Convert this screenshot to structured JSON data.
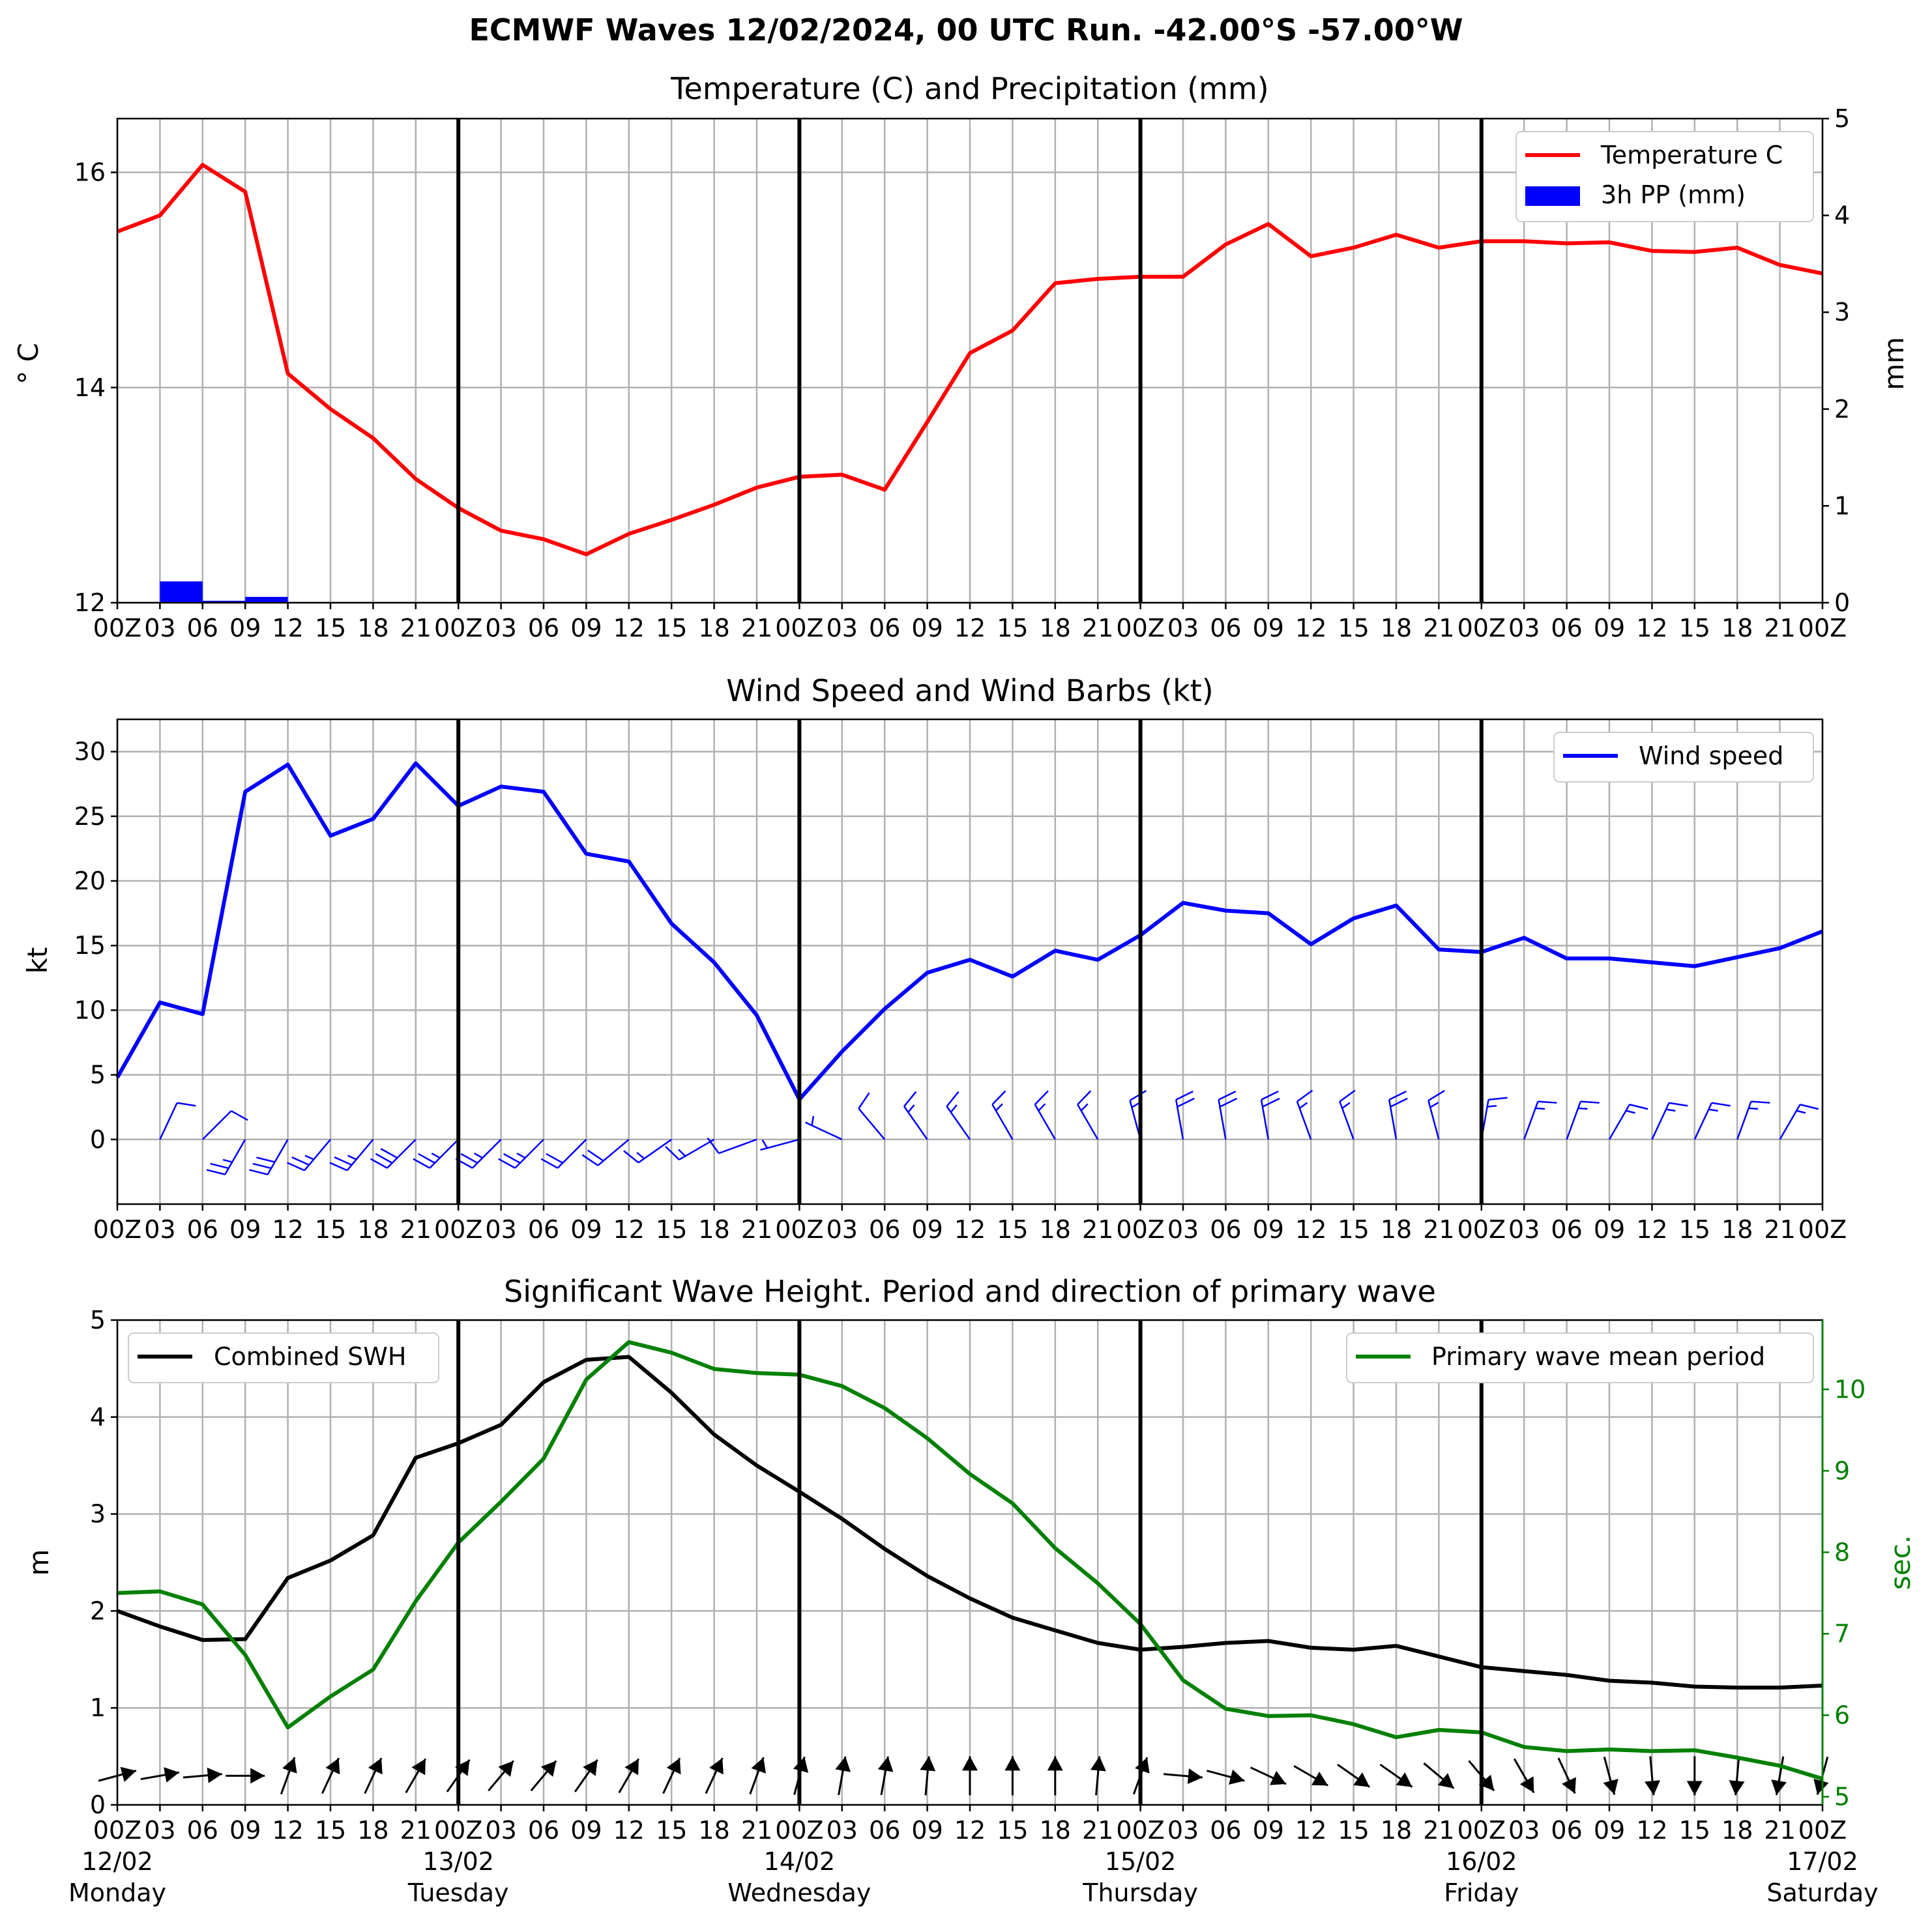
{
  "suptitle": "ECMWF Waves 12/02/2024, 00 UTC Run. -42.00°S -57.00°W",
  "colors": {
    "temperature": "#ff0000",
    "precip": "#0000ff",
    "wind": "#0000ff",
    "swh": "#000000",
    "period": "#008000",
    "grid": "#b0b0b0"
  },
  "hour_ticks": [
    "00Z",
    "03",
    "06",
    "09",
    "12",
    "15",
    "18",
    "21"
  ],
  "end_tick": "00Z",
  "bottom_day_ticks": [
    "00Z",
    "03",
    "06",
    "09",
    "12",
    "15",
    "18",
    "21"
  ],
  "day_dates": [
    "12/02",
    "13/02",
    "14/02",
    "15/02",
    "16/02",
    "17/02"
  ],
  "day_names": [
    "Monday",
    "Tuesday",
    "Wednesday",
    "Thursday",
    "Friday",
    "Saturday"
  ],
  "chart_data": [
    {
      "type": "line",
      "title": "Temperature (C) and Precipitation (mm)",
      "ylabel": "$^\\circ$C",
      "ylabel_display": "° C",
      "y2label": "mm",
      "x_hours": [
        0,
        3,
        6,
        9,
        12,
        15,
        18,
        21,
        24,
        27,
        30,
        33,
        36,
        39,
        42,
        45,
        48,
        51,
        54,
        57,
        60,
        63,
        66,
        69,
        72,
        75,
        78,
        81,
        84,
        87,
        90,
        93,
        96,
        99,
        102,
        105,
        108,
        111,
        114,
        117,
        120
      ],
      "ylim": [
        12,
        16.5
      ],
      "y_ticks": [
        12,
        14,
        16
      ],
      "y2lim": [
        0,
        5
      ],
      "y2_ticks": [
        0,
        1,
        2,
        3,
        4,
        5
      ],
      "grid": true,
      "legend_position": "upper right",
      "series": [
        {
          "name": "Temperature C",
          "axis": "left",
          "values": [
            15.45,
            15.6,
            16.07,
            15.82,
            14.13,
            13.8,
            13.53,
            13.15,
            12.88,
            12.67,
            12.59,
            12.45,
            12.64,
            12.77,
            12.91,
            13.07,
            13.17,
            13.19,
            13.05,
            13.68,
            14.32,
            14.53,
            14.97,
            15.01,
            15.03,
            15.03,
            15.33,
            15.52,
            15.22,
            15.3,
            15.42,
            15.3,
            15.36,
            15.36,
            15.34,
            15.35,
            15.27,
            15.26,
            15.3,
            15.14,
            15.06
          ]
        },
        {
          "name": "3h PP (mm)",
          "axis": "right",
          "type": "bar",
          "values": [
            0,
            0.22,
            0.02,
            0.06,
            0,
            0,
            0,
            0,
            0,
            0,
            0,
            0,
            0,
            0,
            0,
            0,
            0,
            0,
            0,
            0,
            0,
            0,
            0,
            0,
            0,
            0,
            0,
            0,
            0,
            0,
            0,
            0,
            0,
            0,
            0,
            0,
            0,
            0,
            0,
            0
          ]
        }
      ]
    },
    {
      "type": "line",
      "title": "Wind Speed and Wind Barbs (kt)",
      "ylabel": "kt",
      "x_hours": [
        0,
        3,
        6,
        9,
        12,
        15,
        18,
        21,
        24,
        27,
        30,
        33,
        36,
        39,
        42,
        45,
        48,
        51,
        54,
        57,
        60,
        63,
        66,
        69,
        72,
        75,
        78,
        81,
        84,
        87,
        90,
        93,
        96,
        99,
        102,
        105,
        108,
        111,
        114,
        117,
        120
      ],
      "ylim": [
        -5,
        32.5
      ],
      "y_ticks": [
        0,
        5,
        10,
        15,
        20,
        25,
        30
      ],
      "grid": true,
      "legend_position": "upper right",
      "series": [
        {
          "name": "Wind speed",
          "values": [
            4.8,
            10.6,
            9.7,
            26.9,
            29.0,
            23.5,
            24.8,
            29.1,
            25.8,
            27.3,
            26.9,
            22.1,
            21.5,
            16.7,
            13.7,
            9.6,
            3.1,
            6.8,
            10.1,
            12.9,
            13.9,
            12.6,
            14.6,
            13.9,
            15.8,
            18.3,
            17.7,
            17.5,
            15.1,
            17.1,
            18.1,
            14.7,
            14.5,
            15.6,
            14.0,
            14.0,
            13.7,
            13.4,
            14.1,
            14.8,
            16.1
          ]
        }
      ],
      "barbs": {
        "x_hours": [
          3,
          6,
          9,
          12,
          15,
          18,
          21,
          24,
          27,
          30,
          33,
          36,
          39,
          42,
          45,
          48,
          51,
          54,
          57,
          60,
          63,
          66,
          69,
          72,
          75,
          78,
          81,
          84,
          87,
          90,
          93,
          96,
          99,
          102,
          105,
          108,
          111,
          114,
          117
        ],
        "from_direction_deg": [
          25,
          45,
          210,
          210,
          220,
          220,
          225,
          225,
          225,
          225,
          225,
          230,
          235,
          240,
          250,
          255,
          295,
          320,
          325,
          325,
          330,
          330,
          330,
          345,
          350,
          350,
          350,
          340,
          340,
          350,
          345,
          10,
          20,
          20,
          30,
          25,
          25,
          20,
          30
        ]
      }
    },
    {
      "type": "line",
      "title": "Significant Wave Height. Period and direction of primary wave",
      "ylabel": "m",
      "y2label": "sec.",
      "x_hours": [
        0,
        3,
        6,
        9,
        12,
        15,
        18,
        21,
        24,
        27,
        30,
        33,
        36,
        39,
        42,
        45,
        48,
        51,
        54,
        57,
        60,
        63,
        66,
        69,
        72,
        75,
        78,
        81,
        84,
        87,
        90,
        93,
        96,
        99,
        102,
        105,
        108,
        111,
        114,
        117,
        120
      ],
      "ylim": [
        0,
        5
      ],
      "y_ticks": [
        0,
        1,
        2,
        3,
        4,
        5
      ],
      "y2lim": [
        4.9,
        10.85
      ],
      "y2_ticks": [
        5,
        6,
        7,
        8,
        9,
        10
      ],
      "grid": true,
      "series": [
        {
          "name": "Combined SWH",
          "axis": "left",
          "legend_position": "upper left",
          "values": [
            2.0,
            1.84,
            1.7,
            1.71,
            2.34,
            2.52,
            2.78,
            3.58,
            3.73,
            3.92,
            4.36,
            4.59,
            4.62,
            4.25,
            3.82,
            3.5,
            3.23,
            2.95,
            2.64,
            2.36,
            2.13,
            1.93,
            1.8,
            1.67,
            1.6,
            1.63,
            1.67,
            1.69,
            1.62,
            1.6,
            1.64,
            1.53,
            1.42,
            1.38,
            1.34,
            1.28,
            1.26,
            1.22,
            1.21,
            1.21,
            1.23
          ]
        },
        {
          "name": "Primary wave mean period",
          "axis": "right",
          "legend_position": "upper right",
          "values": [
            7.5,
            7.52,
            7.36,
            6.74,
            5.85,
            6.23,
            6.56,
            7.4,
            8.12,
            8.62,
            9.15,
            10.12,
            10.58,
            10.45,
            10.25,
            10.2,
            10.18,
            10.04,
            9.77,
            9.4,
            8.96,
            8.6,
            8.05,
            7.62,
            7.12,
            6.43,
            6.08,
            5.99,
            6.0,
            5.89,
            5.73,
            5.82,
            5.79,
            5.61,
            5.56,
            5.58,
            5.56,
            5.57,
            5.48,
            5.38,
            5.22
          ]
        }
      ],
      "arrows": {
        "x_hours": [
          0,
          3,
          6,
          9,
          12,
          15,
          18,
          21,
          24,
          27,
          30,
          33,
          36,
          39,
          42,
          45,
          48,
          51,
          54,
          57,
          60,
          63,
          66,
          69,
          72,
          75,
          78,
          81,
          84,
          87,
          90,
          93,
          96,
          99,
          102,
          105,
          108,
          111,
          114,
          117,
          120
        ],
        "from_direction_deg": [
          255,
          260,
          265,
          270,
          200,
          205,
          205,
          210,
          215,
          220,
          220,
          215,
          210,
          205,
          205,
          200,
          195,
          190,
          190,
          185,
          180,
          180,
          180,
          185,
          200,
          275,
          285,
          295,
          300,
          305,
          305,
          310,
          320,
          330,
          335,
          345,
          355,
          0,
          5,
          10,
          15
        ]
      }
    }
  ]
}
